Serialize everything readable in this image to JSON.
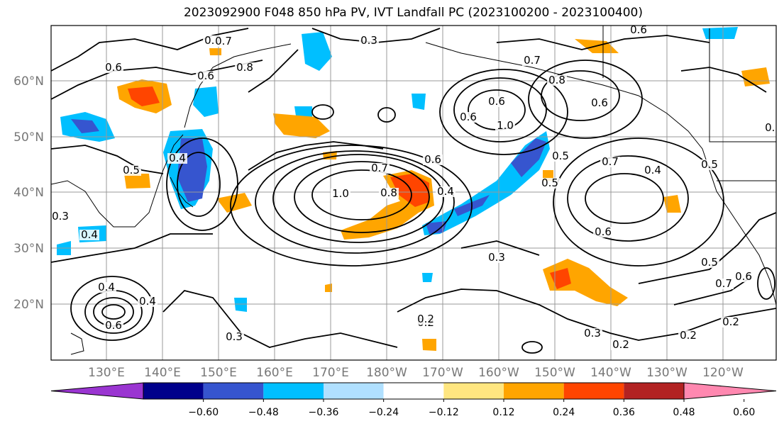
{
  "chart_data": {
    "type": "contour-map",
    "title": "2023092900 F048 850 hPa PV, IVT Landfall PC (2023100200 - 2023100400)",
    "x_ticks": [
      "130°E",
      "140°E",
      "150°E",
      "160°E",
      "170°E",
      "180°W",
      "170°W",
      "160°W",
      "150°W",
      "140°W",
      "130°W",
      "120°W"
    ],
    "y_ticks": [
      "60°N",
      "50°N",
      "40°N",
      "30°N",
      "20°N"
    ],
    "colorbar": {
      "ticks": [
        "−0.60",
        "−0.48",
        "−0.36",
        "−0.24",
        "−0.12",
        "0.12",
        "0.24",
        "0.36",
        "0.48",
        "0.60"
      ],
      "colors": [
        "#9a35d1",
        "#00008b",
        "#3655cf",
        "#00bfff",
        "#b0e0ff",
        "#ffffff",
        "#ffe680",
        "#ffa500",
        "#ff4500",
        "#b22222",
        "#ff88b0"
      ]
    },
    "contour_labels": [
      "0.3",
      "0.4",
      "0.5",
      "0.6",
      "0.7",
      "0.8",
      "1.0",
      "0.2",
      "0.3",
      "0.6",
      "0.7",
      "0.4",
      "0.5",
      "0.6",
      "1.0",
      "0.8",
      "0.7",
      "0.6",
      "0.5",
      "0.4",
      "0.6",
      "0.7",
      "0.4",
      "0.3",
      "0.6",
      "0.2",
      "0.3",
      "0.2",
      "0.2",
      "0.7",
      "0.6",
      "0.5",
      "0.3",
      "0.4",
      "0.6",
      "0.8",
      "0.7",
      "0.6",
      "0.4",
      "0.3",
      "0.2",
      "0.6",
      "0.5"
    ]
  },
  "colors": {
    "axis_label": "#777777",
    "contour": "#000000",
    "grid": "#999999"
  }
}
